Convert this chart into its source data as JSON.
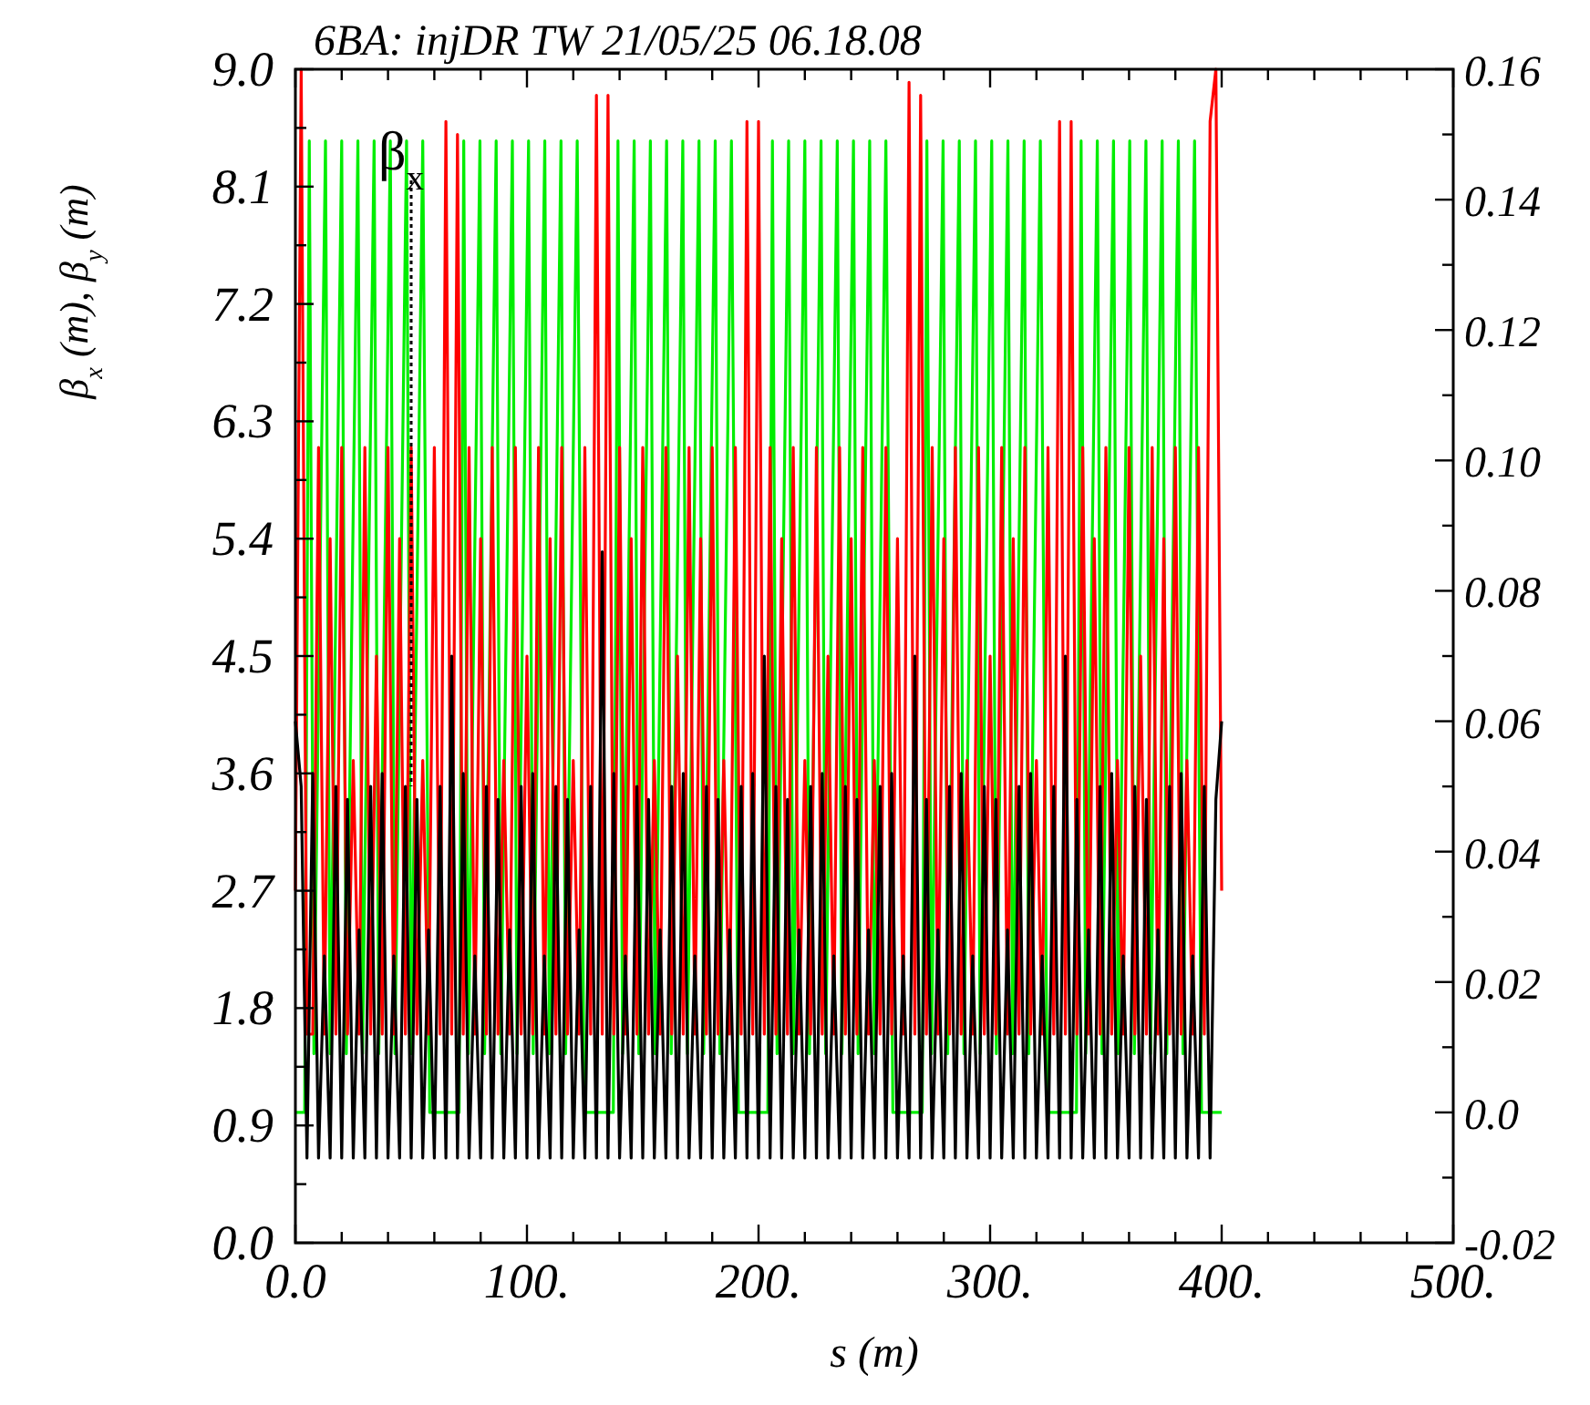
{
  "chart_data": {
    "type": "line",
    "title": "6BA: injDR TW   21/05/25 06.18.08",
    "xlabel": "s (m)",
    "ylabel": "β$_{x}$ (m),  β$_{y}$ (m)",
    "xlim": [
      0,
      500
    ],
    "xticks": [
      {
        "value": 0,
        "label": "0.0"
      },
      {
        "value": 20,
        "label": null
      },
      {
        "value": 40,
        "label": null
      },
      {
        "value": 60,
        "label": null
      },
      {
        "value": 80,
        "label": null
      },
      {
        "value": 100,
        "label": "100."
      },
      {
        "value": 120,
        "label": null
      },
      {
        "value": 140,
        "label": null
      },
      {
        "value": 160,
        "label": null
      },
      {
        "value": 180,
        "label": null
      },
      {
        "value": 200,
        "label": "200."
      },
      {
        "value": 220,
        "label": null
      },
      {
        "value": 240,
        "label": null
      },
      {
        "value": 260,
        "label": null
      },
      {
        "value": 280,
        "label": null
      },
      {
        "value": 300,
        "label": "300."
      },
      {
        "value": 320,
        "label": null
      },
      {
        "value": 340,
        "label": null
      },
      {
        "value": 360,
        "label": null
      },
      {
        "value": 380,
        "label": null
      },
      {
        "value": 400,
        "label": "400."
      },
      {
        "value": 420,
        "label": null
      },
      {
        "value": 440,
        "label": null
      },
      {
        "value": 460,
        "label": null
      },
      {
        "value": 480,
        "label": null
      },
      {
        "value": 500,
        "label": "500."
      }
    ],
    "ylim": [
      0,
      9
    ],
    "yticks": [
      {
        "value": 0,
        "label": "0.0"
      },
      {
        "value": 0.45,
        "label": null
      },
      {
        "value": 0.9,
        "label": "0.9"
      },
      {
        "value": 1.35,
        "label": null
      },
      {
        "value": 1.8,
        "label": "1.8"
      },
      {
        "value": 2.25,
        "label": null
      },
      {
        "value": 2.7,
        "label": "2.7"
      },
      {
        "value": 3.15,
        "label": null
      },
      {
        "value": 3.6,
        "label": "3.6"
      },
      {
        "value": 4.05,
        "label": null
      },
      {
        "value": 4.5,
        "label": "4.5"
      },
      {
        "value": 4.95,
        "label": null
      },
      {
        "value": 5.4,
        "label": "5.4"
      },
      {
        "value": 5.85,
        "label": null
      },
      {
        "value": 6.3,
        "label": "6.3"
      },
      {
        "value": 6.75,
        "label": null
      },
      {
        "value": 7.2,
        "label": "7.2"
      },
      {
        "value": 7.65,
        "label": null
      },
      {
        "value": 8.1,
        "label": "8.1"
      },
      {
        "value": 8.55,
        "label": null
      },
      {
        "value": 9,
        "label": "9.0"
      }
    ],
    "y2lim": [
      -0.02,
      0.16
    ],
    "y2ticks": [
      {
        "value": -0.02,
        "label": "-0.02"
      },
      {
        "value": -0.01,
        "label": null
      },
      {
        "value": 0,
        "label": "0.0"
      },
      {
        "value": 0.01,
        "label": null
      },
      {
        "value": 0.02,
        "label": "0.02"
      },
      {
        "value": 0.03,
        "label": null
      },
      {
        "value": 0.04,
        "label": "0.04"
      },
      {
        "value": 0.05,
        "label": null
      },
      {
        "value": 0.06,
        "label": "0.06"
      },
      {
        "value": 0.07,
        "label": null
      },
      {
        "value": 0.08,
        "label": "0.08"
      },
      {
        "value": 0.09,
        "label": null
      },
      {
        "value": 0.1,
        "label": "0.10"
      },
      {
        "value": 0.11,
        "label": null
      },
      {
        "value": 0.12,
        "label": "0.12"
      },
      {
        "value": 0.13,
        "label": null
      },
      {
        "value": 0.14,
        "label": "0.14"
      },
      {
        "value": 0.15,
        "label": null
      },
      {
        "value": 0.16,
        "label": "0.16"
      }
    ],
    "grid": false,
    "legend": "top left",
    "line_style": "solid",
    "marker": "none",
    "x": [
      0,
      2.5,
      5,
      7.5,
      10,
      12.5,
      15,
      17.5,
      20,
      22.5,
      25,
      27.5,
      30,
      32.5,
      35,
      37.5,
      40,
      42.5,
      45,
      47.5,
      50,
      52.5,
      55,
      57.5,
      60,
      62.5,
      65,
      67.5,
      70,
      72.5,
      75,
      77.5,
      80,
      82.5,
      85,
      87.5,
      90,
      92.5,
      95,
      97.5,
      100,
      102.5,
      105,
      107.5,
      110,
      112.5,
      115,
      117.5,
      120,
      122.5,
      125,
      127.5,
      130,
      132.5,
      135,
      137.5,
      140,
      142.5,
      145,
      147.5,
      150,
      152.5,
      155,
      157.5,
      160,
      162.5,
      165,
      167.5,
      170,
      172.5,
      175,
      177.5,
      180,
      182.5,
      185,
      187.5,
      190,
      192.5,
      195,
      197.5,
      200,
      202.5,
      205,
      207.5,
      210,
      212.5,
      215,
      217.5,
      220,
      222.5,
      225,
      227.5,
      230,
      232.5,
      235,
      237.5,
      240,
      242.5,
      245,
      247.5,
      250,
      252.5,
      255,
      257.5,
      260,
      262.5,
      265,
      267.5,
      270,
      272.5,
      275,
      277.5,
      280,
      282.5,
      285,
      287.5,
      290,
      292.5,
      295,
      297.5,
      300,
      302.5,
      305,
      307.5,
      310,
      312.5,
      315,
      317.5,
      320,
      322.5,
      325,
      327.5,
      330,
      332.5,
      335,
      337.5,
      340,
      342.5,
      345,
      347.5,
      350,
      352.5,
      355,
      357.5,
      360,
      362.5,
      365,
      367.5,
      370,
      372.5,
      375,
      377.5,
      380,
      382.5,
      385,
      387.5,
      390,
      392.5,
      395,
      397.5,
      400
    ],
    "series": [
      {
        "name": "β$_{x}$",
        "color": "#000000",
        "values": [
          4.0,
          3.5,
          0.65,
          3.6,
          0.65,
          2.2,
          0.65,
          3.5,
          0.65,
          3.4,
          0.65,
          2.4,
          0.65,
          3.5,
          0.65,
          3.6,
          0.65,
          2.2,
          0.65,
          3.5,
          0.65,
          3.4,
          0.65,
          2.4,
          0.65,
          3.5,
          0.65,
          4.5,
          0.65,
          3.6,
          0.65,
          2.2,
          0.65,
          3.5,
          0.65,
          3.4,
          0.65,
          2.4,
          0.65,
          3.5,
          0.65,
          3.6,
          0.65,
          2.2,
          0.65,
          3.5,
          0.65,
          3.4,
          0.65,
          2.4,
          0.65,
          3.5,
          0.65,
          5.3,
          0.65,
          3.6,
          0.65,
          2.2,
          0.65,
          3.5,
          0.65,
          3.4,
          0.65,
          2.4,
          0.65,
          3.5,
          0.65,
          3.6,
          0.65,
          2.2,
          0.65,
          3.5,
          0.65,
          3.4,
          0.65,
          2.4,
          0.65,
          3.5,
          0.65,
          3.6,
          0.65,
          4.5,
          0.65,
          3.5,
          0.65,
          3.4,
          0.65,
          2.4,
          0.65,
          3.5,
          0.65,
          3.6,
          0.65,
          2.2,
          0.65,
          3.5,
          0.65,
          3.4,
          0.65,
          2.4,
          0.65,
          3.5,
          0.65,
          3.6,
          0.65,
          2.2,
          0.65,
          4.5,
          0.65,
          3.4,
          0.65,
          2.4,
          0.65,
          3.5,
          0.65,
          3.6,
          0.65,
          2.2,
          0.65,
          3.5,
          0.65,
          3.4,
          0.65,
          2.4,
          0.65,
          3.5,
          0.65,
          3.6,
          0.65,
          2.2,
          0.65,
          3.5,
          0.65,
          4.5,
          0.65,
          3.4,
          0.65,
          2.4,
          0.65,
          3.5,
          0.65,
          3.6,
          0.65,
          2.2,
          0.65,
          3.5,
          0.65,
          3.4,
          0.65,
          2.4,
          0.65,
          3.5,
          0.65,
          3.6,
          0.65,
          2.2,
          0.65,
          3.5,
          0.65,
          3.4,
          4.0
        ]
      },
      {
        "color": "#ff0000",
        "values": [
          2.7,
          9.0,
          1.6,
          1.6,
          6.1,
          1.6,
          5.4,
          1.6,
          6.1,
          1.6,
          3.7,
          1.6,
          6.1,
          1.6,
          4.5,
          1.6,
          6.1,
          1.6,
          5.4,
          1.6,
          6.1,
          1.6,
          3.7,
          1.6,
          6.1,
          1.6,
          8.6,
          1.6,
          8.5,
          1.6,
          6.1,
          1.6,
          5.4,
          1.6,
          6.1,
          1.6,
          3.7,
          1.6,
          6.1,
          1.6,
          4.5,
          1.6,
          6.1,
          1.6,
          5.4,
          1.6,
          6.1,
          1.6,
          3.7,
          1.6,
          6.1,
          1.6,
          8.8,
          1.6,
          8.8,
          1.6,
          6.1,
          1.6,
          5.4,
          1.6,
          6.1,
          1.6,
          3.7,
          1.6,
          6.1,
          1.6,
          4.5,
          1.6,
          6.1,
          1.6,
          5.4,
          1.6,
          6.1,
          1.6,
          3.7,
          1.6,
          6.1,
          1.6,
          8.6,
          1.6,
          8.6,
          1.6,
          6.1,
          1.6,
          5.4,
          1.6,
          6.1,
          1.6,
          3.7,
          1.6,
          6.1,
          1.6,
          4.5,
          1.6,
          6.1,
          1.6,
          5.4,
          1.6,
          6.1,
          1.6,
          3.7,
          1.6,
          6.1,
          1.6,
          5.4,
          1.6,
          8.9,
          1.6,
          8.8,
          1.6,
          6.1,
          1.6,
          5.4,
          1.6,
          6.1,
          1.6,
          3.7,
          1.6,
          6.1,
          1.6,
          4.5,
          1.6,
          6.1,
          1.6,
          5.4,
          1.6,
          6.1,
          1.6,
          3.7,
          1.6,
          6.1,
          1.6,
          8.6,
          1.6,
          8.6,
          1.6,
          6.1,
          1.6,
          5.4,
          1.6,
          6.1,
          1.6,
          3.7,
          1.6,
          6.1,
          1.6,
          4.5,
          1.6,
          6.1,
          1.6,
          5.4,
          1.6,
          6.1,
          1.6,
          3.7,
          1.6,
          6.1,
          1.6,
          8.6,
          9.0,
          2.7
        ]
      },
      {
        "color": "#00ee00",
        "axis": "y2",
        "x": [
          0,
          4,
          6,
          8,
          13,
          15,
          20,
          22,
          27,
          29,
          34,
          36,
          41,
          43,
          48,
          50,
          55,
          58,
          66.7,
          70.7,
          72.7,
          74.7,
          79.7,
          81.7,
          86.7,
          88.7,
          93.7,
          95.7,
          100.7,
          102.7,
          107.7,
          109.7,
          114.7,
          116.7,
          121.7,
          124.7,
          133.3,
          137.3,
          139.3,
          141.3,
          146.3,
          148.3,
          153.3,
          155.3,
          160.3,
          162.3,
          167.3,
          169.3,
          174.3,
          176.3,
          181.3,
          183.3,
          188.3,
          191.3,
          200,
          204,
          206,
          208,
          213,
          215,
          220,
          222,
          227,
          229,
          234,
          236,
          241,
          243,
          248,
          250,
          255,
          258,
          266.7,
          270.7,
          272.7,
          274.7,
          279.7,
          281.7,
          286.7,
          288.7,
          293.7,
          295.7,
          300.7,
          302.7,
          307.7,
          309.7,
          314.7,
          316.7,
          321.7,
          324.7,
          333.3,
          337.3,
          339.3,
          341.3,
          346.3,
          348.3,
          353.3,
          355.3,
          360.3,
          362.3,
          367.3,
          369.3,
          374.3,
          376.3,
          381.3,
          383.3,
          388.3,
          391.3,
          400
        ],
        "values": [
          0,
          0,
          0.149,
          0.009,
          0.149,
          0.009,
          0.149,
          0.009,
          0.149,
          0.009,
          0.149,
          0.009,
          0.149,
          0.009,
          0.149,
          0.009,
          0.149,
          0,
          0,
          0,
          0.149,
          0.009,
          0.149,
          0.009,
          0.149,
          0.009,
          0.149,
          0.009,
          0.149,
          0.009,
          0.149,
          0.009,
          0.149,
          0.009,
          0.149,
          0,
          0,
          0,
          0.149,
          0.009,
          0.149,
          0.009,
          0.149,
          0.009,
          0.149,
          0.009,
          0.149,
          0.009,
          0.149,
          0.009,
          0.149,
          0.009,
          0.149,
          0,
          0,
          0,
          0.149,
          0.009,
          0.149,
          0.009,
          0.149,
          0.009,
          0.149,
          0.009,
          0.149,
          0.009,
          0.149,
          0.009,
          0.149,
          0.009,
          0.149,
          0,
          0,
          0,
          0.149,
          0.009,
          0.149,
          0.009,
          0.149,
          0.009,
          0.149,
          0.009,
          0.149,
          0.009,
          0.149,
          0.009,
          0.149,
          0.009,
          0.149,
          0,
          0,
          0,
          0.149,
          0.009,
          0.149,
          0.009,
          0.149,
          0.009,
          0.149,
          0.009,
          0.149,
          0.009,
          0.149,
          0.009,
          0.149,
          0.009,
          0.149,
          0,
          0
        ]
      }
    ]
  }
}
